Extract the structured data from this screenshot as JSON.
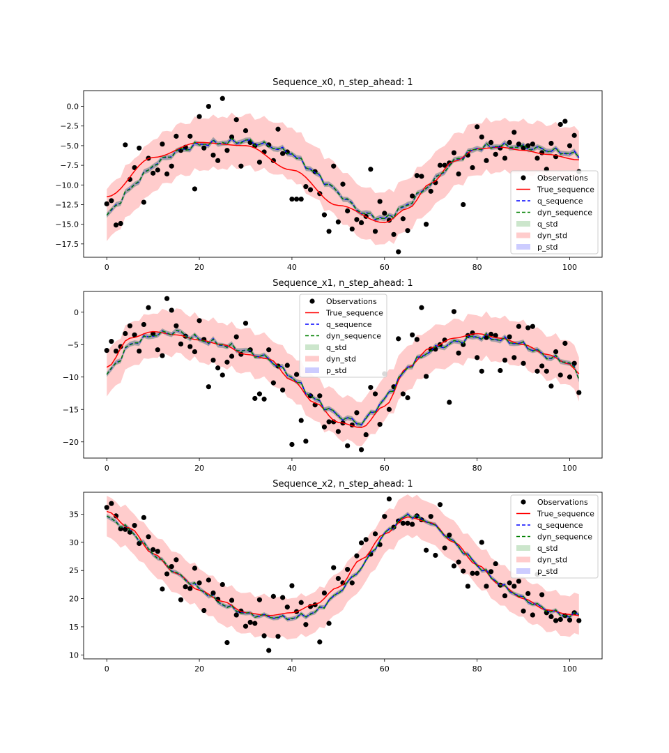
{
  "chart_data": [
    {
      "type": "line",
      "title": "Sequence_x0, n_step_ahead: 1",
      "xlabel": "",
      "ylabel": "",
      "xlim": [
        -5,
        107
      ],
      "ylim": [
        -19.2,
        2.0
      ],
      "xticks": [
        0,
        20,
        40,
        60,
        80,
        100
      ],
      "xtick_labels": [
        "0",
        "20",
        "40",
        "60",
        "80",
        "100"
      ],
      "yticks": [
        0.0,
        -2.5,
        -5.0,
        -7.5,
        -10.0,
        -12.5,
        -15.0,
        -17.5
      ],
      "ytick_labels": [
        "0.0",
        "−2.5",
        "−5.0",
        "−7.5",
        "−10.0",
        "−12.5",
        "−15.0",
        "−17.5"
      ],
      "legend_position": "lower-right",
      "legend": [
        "Observations",
        "True_sequence",
        "q_sequence",
        "dyn_sequence",
        "q_std",
        "dyn_std",
        "p_std"
      ],
      "true_keys": {
        "x": [
          0,
          10,
          20,
          30,
          40,
          50,
          60,
          65,
          70,
          75,
          80,
          85,
          90,
          95,
          102
        ],
        "y": [
          -11.5,
          -6.5,
          -4.6,
          -5.0,
          -8.1,
          -12.6,
          -14.8,
          -13.0,
          -9.8,
          -7.0,
          -5.4,
          -5.2,
          -5.6,
          -6.1,
          -6.8
        ]
      },
      "mean_keys": {
        "x": [
          0,
          5,
          10,
          15,
          20,
          25,
          30,
          35,
          40,
          45,
          50,
          55,
          60,
          65,
          70,
          75,
          80,
          85,
          90,
          95,
          102
        ],
        "y": [
          -14.0,
          -10.5,
          -7.5,
          -5.8,
          -4.8,
          -4.6,
          -4.4,
          -5.0,
          -6.0,
          -8.5,
          -11.0,
          -13.5,
          -14.4,
          -12.5,
          -9.8,
          -7.0,
          -5.3,
          -5.0,
          -5.2,
          -5.5,
          -6.2
        ]
      },
      "dyn_std": 3.3,
      "q_std": 0.35,
      "p_std": 0.3,
      "noise_amp": 0.45,
      "obs_x": [
        0,
        1,
        2,
        3,
        4,
        5,
        6,
        7,
        8,
        9,
        10,
        11,
        12,
        13,
        14,
        15,
        16,
        17,
        18,
        19,
        20,
        21,
        22,
        23,
        24,
        25,
        26,
        27,
        28,
        29,
        30,
        31,
        32,
        33,
        34,
        35,
        36,
        37,
        38,
        39,
        40,
        41,
        42,
        43,
        44,
        45,
        46,
        47,
        48,
        49,
        50,
        51,
        52,
        53,
        54,
        55,
        56,
        57,
        58,
        59,
        60,
        61,
        62,
        63,
        64,
        65,
        66,
        67,
        68,
        69,
        70,
        71,
        72,
        73,
        74,
        75,
        76,
        77,
        78,
        79,
        80,
        81,
        82,
        83,
        84,
        85,
        86,
        87,
        88,
        89,
        90,
        91,
        92,
        93,
        94,
        95,
        96,
        97,
        98,
        99,
        100,
        101,
        102
      ],
      "obs_y": [
        -12.4,
        -12.0,
        -15.1,
        -14.9,
        -4.9,
        -9.3,
        -7.8,
        -5.3,
        -12.2,
        -6.6,
        -8.5,
        -8.1,
        -4.8,
        -8.6,
        -7.6,
        -3.8,
        -5.6,
        -5.2,
        -3.8,
        -10.5,
        -1.3,
        -5.3,
        0.0,
        -6.2,
        -6.9,
        1.0,
        -5.6,
        -3.9,
        -1.7,
        -7.6,
        -3.1,
        -4.6,
        -5.0,
        -7.1,
        -5.8,
        -4.9,
        -6.9,
        -2.9,
        -6.0,
        -5.8,
        -11.8,
        -11.8,
        -11.8,
        -10.2,
        -10.6,
        -8.3,
        -11.1,
        -13.8,
        -15.9,
        -7.6,
        -14.7,
        -9.9,
        -13.3,
        -15.6,
        -14.4,
        -14.8,
        -14.0,
        -8.0,
        -15.9,
        -12.1,
        -13.6,
        -14.5,
        -16.3,
        -18.5,
        -14.3,
        -15.8,
        -11.4,
        -8.8,
        -8.9,
        -15.0,
        -10.8,
        -9.7,
        -7.5,
        -7.5,
        -7.2,
        -5.9,
        -8.6,
        -12.5,
        -6.2,
        -7.8,
        -2.6,
        -3.9,
        -6.9,
        -4.6,
        -6.1,
        -5.3,
        -6.6,
        -4.6,
        -3.3,
        -4.8,
        -5.3,
        -5.0,
        -4.8,
        -6.6,
        -5.9,
        -8.0,
        -4.7,
        -6.4,
        -2.3,
        -1.9,
        -5.0,
        -3.7,
        -8.3
      ]
    },
    {
      "type": "line",
      "title": "Sequence_x1, n_step_ahead: 1",
      "xlabel": "",
      "ylabel": "",
      "xlim": [
        -5,
        107
      ],
      "ylim": [
        -22.5,
        3.2
      ],
      "xticks": [
        0,
        20,
        40,
        60,
        80,
        100
      ],
      "xtick_labels": [
        "0",
        "20",
        "40",
        "60",
        "80",
        "100"
      ],
      "yticks": [
        0,
        -5,
        -10,
        -15,
        -20
      ],
      "ytick_labels": [
        "0",
        "−5",
        "−10",
        "−15",
        "−20"
      ],
      "legend_position": "upper-center",
      "legend": [
        "Observations",
        "True_sequence",
        "q_sequence",
        "dyn_sequence",
        "q_std",
        "dyn_std",
        "p_std"
      ],
      "true_keys": {
        "x": [
          0,
          5,
          10,
          15,
          20,
          25,
          30,
          35,
          40,
          45,
          50,
          55,
          60,
          65,
          70,
          75,
          80,
          85,
          90,
          95,
          100,
          102
        ],
        "y": [
          -8.5,
          -4.0,
          -3.0,
          -3.5,
          -4.3,
          -5.0,
          -6.5,
          -7.2,
          -10.5,
          -14.0,
          -17.0,
          -17.8,
          -14.5,
          -8.5,
          -5.5,
          -4.0,
          -3.3,
          -4.0,
          -5.0,
          -6.5,
          -8.0,
          -9.5
        ]
      },
      "mean_keys": {
        "x": [
          0,
          5,
          10,
          15,
          20,
          25,
          30,
          35,
          40,
          45,
          50,
          55,
          60,
          65,
          70,
          75,
          80,
          85,
          90,
          95,
          100,
          102
        ],
        "y": [
          -9.8,
          -5.0,
          -3.5,
          -3.0,
          -4.2,
          -5.0,
          -6.0,
          -7.2,
          -10.0,
          -13.5,
          -16.0,
          -17.2,
          -13.5,
          -8.5,
          -5.8,
          -4.7,
          -3.7,
          -4.2,
          -5.0,
          -6.8,
          -7.8,
          -10.0
        ]
      },
      "dyn_std": 3.4,
      "q_std": 0.4,
      "p_std": 0.35,
      "noise_amp": 0.6,
      "obs_x": [
        0,
        1,
        2,
        3,
        4,
        5,
        6,
        7,
        8,
        9,
        10,
        11,
        12,
        13,
        14,
        15,
        16,
        17,
        18,
        19,
        20,
        21,
        22,
        23,
        24,
        25,
        26,
        27,
        28,
        29,
        30,
        31,
        32,
        33,
        34,
        35,
        36,
        37,
        38,
        39,
        40,
        41,
        42,
        43,
        44,
        45,
        46,
        47,
        48,
        49,
        50,
        51,
        52,
        53,
        54,
        55,
        56,
        57,
        58,
        59,
        60,
        61,
        62,
        63,
        64,
        65,
        66,
        67,
        68,
        69,
        70,
        71,
        72,
        73,
        74,
        75,
        76,
        77,
        78,
        79,
        80,
        81,
        82,
        83,
        84,
        85,
        86,
        87,
        88,
        89,
        90,
        91,
        92,
        93,
        94,
        95,
        96,
        97,
        98,
        99,
        100,
        101,
        102
      ],
      "obs_y": [
        -5.9,
        -4.5,
        -6.0,
        -5.3,
        -3.3,
        -2.1,
        -3.5,
        -6.0,
        -1.9,
        0.7,
        -3.3,
        -5.8,
        -6.7,
        2.1,
        0.3,
        -2.1,
        -4.9,
        -3.7,
        -5.3,
        -6.1,
        -1.3,
        -4.2,
        -11.5,
        -7.4,
        -8.6,
        -9.7,
        -7.7,
        -6.8,
        -3.8,
        -6.5,
        -1.7,
        -5.8,
        -13.3,
        -12.6,
        -13.4,
        -5.8,
        -10.9,
        -8.3,
        -12.0,
        -8.2,
        -20.4,
        -9.6,
        -16.7,
        -19.9,
        -12.9,
        -14.3,
        -12.9,
        -17.7,
        -16.9,
        -16.9,
        -18.4,
        -17.1,
        -20.6,
        -17.4,
        -15.5,
        -21.2,
        -18.9,
        -11.6,
        -12.6,
        -17.3,
        -9.5,
        -15.0,
        -11.5,
        -4.1,
        -12.6,
        -13.2,
        -3.5,
        -4.2,
        0.7,
        -9.9,
        -5.7,
        -5.7,
        -5.0,
        -4.3,
        -13.9,
        0.1,
        -6.3,
        -5.0,
        -3.6,
        -3.2,
        -7.0,
        -9.1,
        -3.9,
        -3.4,
        -3.6,
        -9.0,
        -7.4,
        -3.8,
        -7.0,
        -2.2,
        -7.9,
        -2.4,
        -2.2,
        -9.1,
        -8.3,
        -9.1,
        -11.4,
        -6.1,
        -9.7,
        -4.8,
        -10.0,
        -7.9,
        -12.4
      ]
    },
    {
      "type": "line",
      "title": "Sequence_x2, n_step_ahead: 1",
      "xlabel": "",
      "ylabel": "",
      "xlim": [
        -5,
        107
      ],
      "ylim": [
        9.3,
        38.9
      ],
      "xticks": [
        0,
        20,
        40,
        60,
        80,
        100
      ],
      "xtick_labels": [
        "0",
        "20",
        "40",
        "60",
        "80",
        "100"
      ],
      "yticks": [
        35,
        30,
        25,
        20,
        15,
        10
      ],
      "ytick_labels": [
        "35",
        "30",
        "25",
        "20",
        "15",
        "10"
      ],
      "legend_position": "upper-right",
      "legend": [
        "Observations",
        "True_sequence",
        "q_sequence",
        "dyn_sequence",
        "q_std",
        "dyn_std",
        "p_std"
      ],
      "true_keys": {
        "x": [
          0,
          5,
          10,
          15,
          20,
          25,
          30,
          35,
          40,
          45,
          50,
          55,
          60,
          65,
          70,
          75,
          80,
          85,
          90,
          95,
          100,
          102
        ],
        "y": [
          35.5,
          32.5,
          28.0,
          24.5,
          21.5,
          19.5,
          17.5,
          17.0,
          17.5,
          19.0,
          22.0,
          27.0,
          31.5,
          34.5,
          33.5,
          30.0,
          26.0,
          22.5,
          20.0,
          18.0,
          17.2,
          17.0
        ]
      },
      "mean_keys": {
        "x": [
          0,
          5,
          10,
          15,
          20,
          25,
          30,
          35,
          40,
          45,
          50,
          55,
          60,
          65,
          70,
          75,
          80,
          85,
          90,
          95,
          100,
          102
        ],
        "y": [
          34.5,
          32.2,
          28.0,
          24.5,
          21.8,
          19.0,
          17.3,
          16.8,
          16.5,
          17.5,
          21.0,
          25.5,
          31.5,
          35.0,
          33.5,
          30.0,
          26.0,
          22.5,
          20.0,
          18.0,
          16.8,
          17.5
        ]
      },
      "dyn_std": 3.6,
      "q_std": 0.4,
      "p_std": 0.35,
      "noise_amp": 0.5,
      "obs_x": [
        0,
        1,
        2,
        3,
        4,
        5,
        6,
        7,
        8,
        9,
        10,
        11,
        12,
        13,
        14,
        15,
        16,
        17,
        18,
        19,
        20,
        21,
        22,
        23,
        24,
        25,
        26,
        27,
        28,
        29,
        30,
        31,
        32,
        33,
        34,
        35,
        36,
        37,
        38,
        39,
        40,
        41,
        42,
        43,
        44,
        45,
        46,
        47,
        48,
        49,
        50,
        51,
        52,
        53,
        54,
        55,
        56,
        57,
        58,
        59,
        60,
        61,
        62,
        63,
        64,
        65,
        66,
        67,
        68,
        69,
        70,
        71,
        72,
        73,
        74,
        75,
        76,
        77,
        78,
        79,
        80,
        81,
        82,
        83,
        84,
        85,
        86,
        87,
        88,
        89,
        90,
        91,
        92,
        93,
        94,
        95,
        96,
        97,
        98,
        99,
        100,
        101,
        102
      ],
      "obs_y": [
        36.2,
        36.9,
        34.7,
        32.4,
        32.3,
        31.8,
        33.0,
        29.8,
        34.4,
        31.0,
        28.7,
        28.4,
        21.7,
        24.4,
        25.7,
        26.9,
        19.8,
        22.1,
        21.8,
        25.4,
        22.8,
        17.9,
        23.3,
        21.0,
        19.9,
        22.5,
        12.2,
        19.7,
        17.1,
        17.8,
        15.1,
        15.8,
        15.6,
        19.8,
        13.4,
        10.8,
        20.4,
        13.3,
        20.2,
        18.5,
        22.3,
        17.7,
        19.3,
        15.4,
        18.6,
        18.9,
        12.3,
        21.0,
        15.6,
        25.5,
        23.6,
        22.8,
        25.2,
        22.8,
        27.6,
        29.9,
        30.5,
        27.9,
        31.5,
        29.6,
        34.6,
        37.7,
        32.7,
        33.8,
        33.4,
        33.4,
        33.2,
        34.7,
        34.0,
        28.6,
        34.6,
        27.7,
        36.7,
        29.0,
        31.3,
        25.8,
        26.5,
        24.9,
        22.2,
        24.5,
        24.5,
        30.0,
        22.2,
        24.8,
        26.2,
        22.4,
        20.5,
        22.8,
        22.2,
        23.1,
        17.8,
        20.9,
        17.1,
        24.3,
        20.7,
        17.5,
        16.8,
        16.1,
        16.3,
        17.0,
        16.2,
        17.5,
        16.1
      ]
    }
  ]
}
